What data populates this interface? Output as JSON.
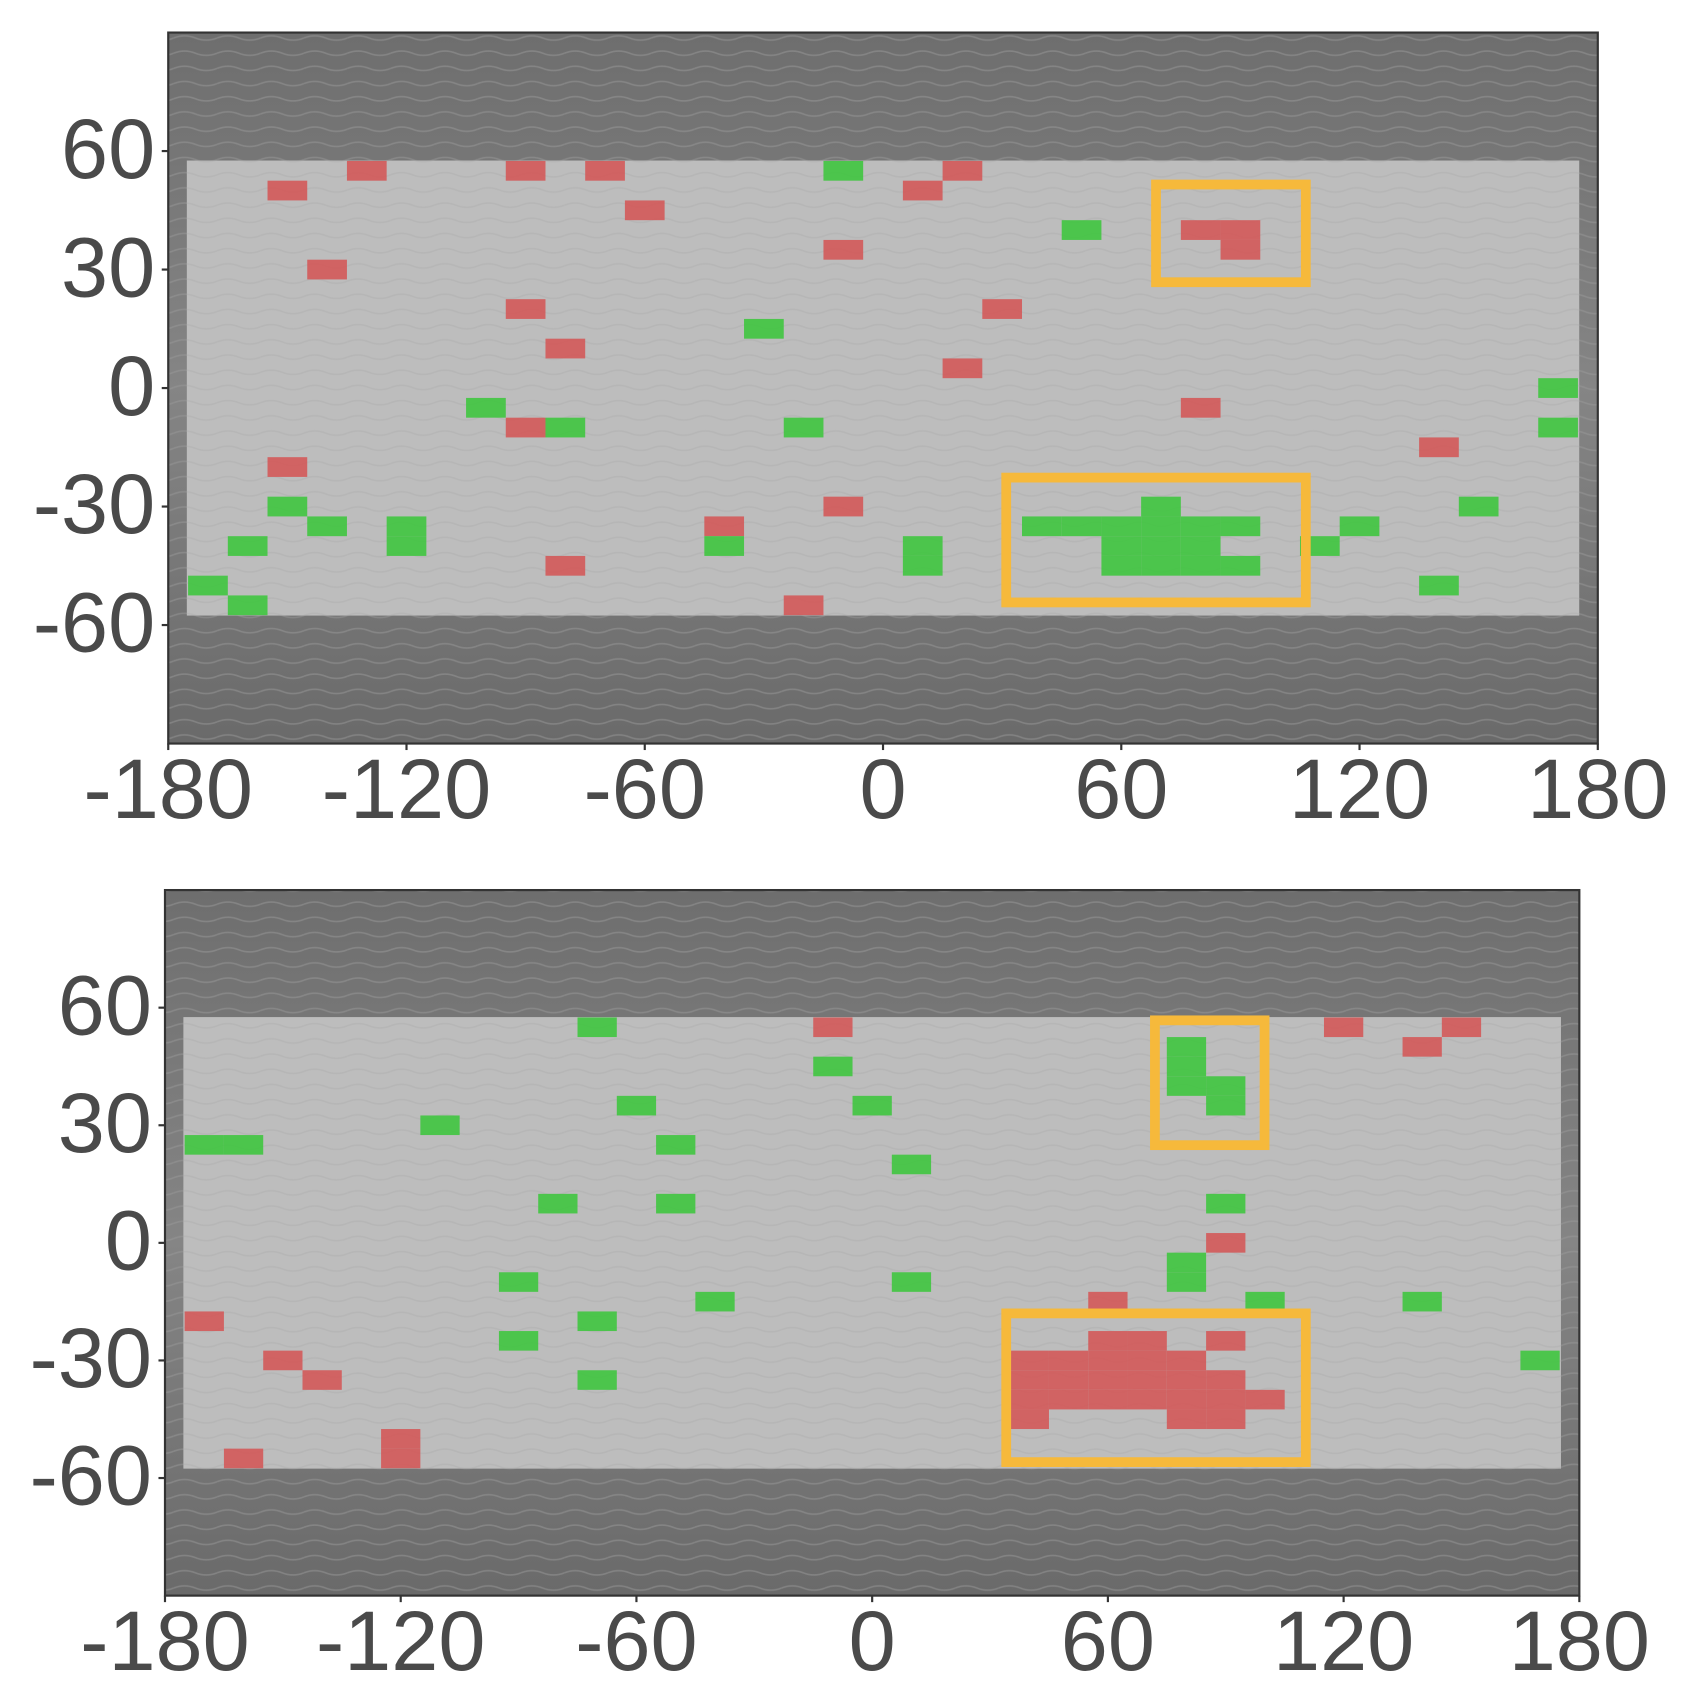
{
  "chart_data": [
    {
      "type": "cells",
      "xlim": [
        -180,
        180
      ],
      "ylim": [
        -90,
        90
      ],
      "xticks": [
        -180,
        -120,
        -60,
        0,
        60,
        120,
        180
      ],
      "yticks": [
        -60,
        -30,
        0,
        30,
        60
      ],
      "series": [
        {
          "color": "#d45656",
          "x": [
            -150,
            -130,
            -90,
            -70,
            -60,
            -140,
            -90,
            -80,
            -90,
            -150,
            -40,
            -80,
            -10,
            10,
            20,
            30,
            20,
            -10,
            -20,
            80,
            90,
            90,
            80,
            140
          ],
          "y": [
            50,
            55,
            55,
            55,
            45,
            30,
            20,
            10,
            -10,
            -20,
            -35,
            -45,
            35,
            50,
            55,
            20,
            5,
            -30,
            -55,
            40,
            40,
            35,
            -5,
            -15
          ]
        },
        {
          "color": "#3cc63c",
          "x": [
            -10,
            50,
            -30,
            -100,
            -80,
            -20,
            -150,
            -140,
            -120,
            -120,
            -160,
            -170,
            -160,
            -40,
            10,
            10,
            40,
            50,
            60,
            70,
            80,
            90,
            70,
            60,
            70,
            80,
            60,
            70,
            80,
            90,
            110,
            120,
            150,
            140,
            170,
            170
          ],
          "y": [
            55,
            40,
            15,
            -5,
            -10,
            -10,
            -30,
            -35,
            -35,
            -40,
            -40,
            -50,
            -55,
            -40,
            -40,
            -45,
            -35,
            -35,
            -35,
            -35,
            -35,
            -35,
            -30,
            -40,
            -40,
            -40,
            -45,
            -45,
            -45,
            -45,
            -40,
            -35,
            -30,
            -50,
            0,
            -10
          ]
        }
      ]
    },
    {
      "type": "cells",
      "xlim": [
        -180,
        180
      ],
      "ylim": [
        -90,
        90
      ],
      "xticks": [
        -180,
        -120,
        -60,
        0,
        60,
        120,
        180
      ],
      "yticks": [
        -60,
        -30,
        0,
        30,
        60
      ],
      "series": [
        {
          "color": "#d45656",
          "x": [
            -10,
            120,
            150,
            140,
            90,
            60,
            -170,
            -150,
            -140,
            -160,
            -120,
            -120,
            60,
            70,
            90,
            40,
            50,
            60,
            70,
            80,
            40,
            50,
            60,
            70,
            80,
            90,
            40,
            50,
            60,
            70,
            80,
            90,
            100,
            40,
            80,
            90
          ],
          "y": [
            55,
            55,
            55,
            50,
            0,
            -15,
            -20,
            -30,
            -35,
            -55,
            -50,
            -55,
            -25,
            -25,
            -25,
            -30,
            -30,
            -30,
            -30,
            -30,
            -35,
            -35,
            -35,
            -35,
            -35,
            -35,
            -40,
            -40,
            -40,
            -40,
            -40,
            -40,
            -40,
            -45,
            -45,
            -45
          ]
        },
        {
          "color": "#3cc63c",
          "x": [
            -70,
            -10,
            -60,
            0,
            -110,
            -170,
            -160,
            -50,
            10,
            -80,
            -50,
            90,
            -90,
            10,
            -40,
            -70,
            -90,
            -70,
            80,
            80,
            100,
            140,
            170,
            80,
            80,
            80,
            90,
            90
          ],
          "y": [
            55,
            45,
            35,
            35,
            30,
            25,
            25,
            25,
            20,
            10,
            10,
            10,
            -10,
            -10,
            -15,
            -20,
            -25,
            -35,
            -5,
            -10,
            -15,
            -15,
            -30,
            50,
            45,
            40,
            40,
            35
          ]
        }
      ]
    }
  ]
}
